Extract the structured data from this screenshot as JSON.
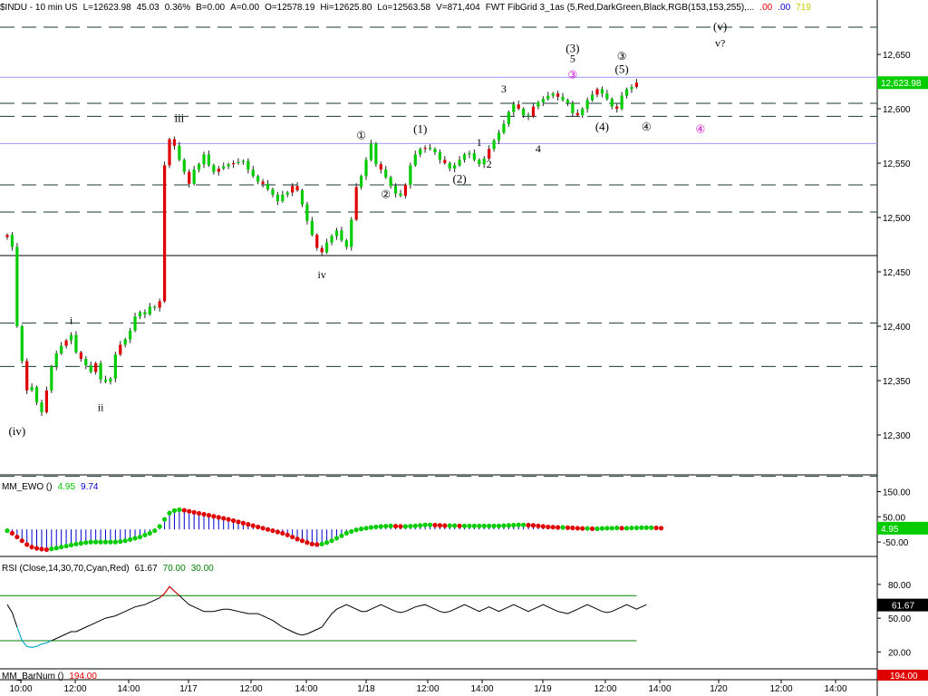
{
  "header": {
    "symbol": "$INDU - 10 min  US",
    "last": "L=12623.98",
    "change": "45.03",
    "change_pct": "0.36%",
    "bid": "B=0.00",
    "ask": "A=0.00",
    "open": "O=12578.19",
    "high": "Hi=12625.80",
    "low": "Lo=12563.58",
    "volume": "V=871,404",
    "study": "FWT FibGrid 3_1as (5,Red,DarkGreen,Black,RGB(153,153,255),...",
    "val_red": ".00",
    "val_blue": ".00",
    "val_yellow": "719"
  },
  "panels": {
    "ewo": {
      "name": "MM_EWO ()",
      "v1": "4.95",
      "v2": "9.74",
      "badge": "4.95",
      "badge_color": "#00cc00"
    },
    "rsi": {
      "name": "RSI (Close,14,30,70,Cyan,Red)",
      "v1": "61.67",
      "v2": "70.00",
      "v3": "30.00",
      "badge": "61.67"
    },
    "barnum": {
      "name": "MM_BarNum ()",
      "v1": "194.00",
      "badge": "194.00",
      "badge_color": "#e00000"
    }
  },
  "colors": {
    "up": "#00cc00",
    "down": "#e00000",
    "fib": "#9999ff",
    "ewo_bar": "#0000cc",
    "cyan": "#00c0e0"
  },
  "chart_data": {
    "type": "candlestick",
    "interval": "10 min",
    "price_axis": {
      "ylim": [
        12265,
        12685
      ],
      "ticks": [
        12300,
        12350,
        12400,
        12450,
        12500,
        12550,
        12600,
        12650
      ]
    },
    "last_price": 12623.98,
    "last_price_label": "12,623.98",
    "time_labels": [
      "10:00",
      "12:00",
      "14:00",
      "1/17",
      "12:00",
      "14:00",
      "1/18",
      "12:00",
      "14:00",
      "1/19",
      "12:00",
      "14:00",
      "1/20",
      "12:00",
      "14:00"
    ],
    "fib_lines_solid": [
      12629,
      12568
    ],
    "fib_lines_dashed": [
      12675,
      12605,
      12593,
      12530,
      12505,
      12403,
      12363,
      12262
    ],
    "horizontal_line": 12465,
    "closes": [
      12484,
      12473,
      12400,
      12368,
      12341,
      12344,
      12330,
      12321,
      12341,
      12363,
      12375,
      12382,
      12387,
      12392,
      12376,
      12370,
      12364,
      12358,
      12366,
      12351,
      12349,
      12352,
      12374,
      12383,
      12388,
      12396,
      12409,
      12413,
      12411,
      12418,
      12417,
      12423,
      12548,
      12572,
      12566,
      12553,
      12542,
      12531,
      12544,
      12549,
      12558,
      12548,
      12542,
      12545,
      12547,
      12549,
      12550,
      12551,
      12552,
      12544,
      12538,
      12533,
      12531,
      12526,
      12521,
      12515,
      12521,
      12523,
      12529,
      12525,
      12512,
      12497,
      12484,
      12472,
      12468,
      12477,
      12483,
      12488,
      12479,
      12473,
      12498,
      12528,
      12538,
      12553,
      12568,
      12549,
      12544,
      12537,
      12529,
      12522,
      12520,
      12530,
      12548,
      12558,
      12563,
      12564,
      12563,
      12560,
      12553,
      12550,
      12545,
      12548,
      12553,
      12558,
      12559,
      12553,
      12549,
      12554,
      12563,
      12571,
      12578,
      12586,
      12597,
      12604,
      12600,
      12594,
      12593,
      12602,
      12606,
      12609,
      12612,
      12614,
      12611,
      12608,
      12605,
      12596,
      12594,
      12600,
      12608,
      12613,
      12618,
      12614,
      12609,
      12602,
      12600,
      12612,
      12618,
      12620,
      12624
    ],
    "event_bars": [
      0,
      4,
      8,
      12,
      15,
      18,
      23,
      31,
      32,
      33,
      34,
      37,
      43,
      46,
      52,
      58,
      59,
      63,
      64,
      71,
      76,
      81,
      85,
      89,
      98,
      104,
      107,
      112,
      116,
      120,
      124,
      128
    ],
    "ewo": {
      "ylim": [
        -100,
        195
      ],
      "ticks": [
        150,
        50,
        -50
      ],
      "values": [
        -5,
        -15,
        -30,
        -45,
        -60,
        -70,
        -75,
        -78,
        -80,
        -77,
        -74,
        -70,
        -66,
        -62,
        -58,
        -55,
        -52,
        -50,
        -50,
        -50,
        -50,
        -50,
        -50,
        -48,
        -45,
        -40,
        -35,
        -30,
        -22,
        -15,
        -5,
        12,
        40,
        65,
        75,
        78,
        76,
        72,
        68,
        64,
        60,
        56,
        52,
        48,
        44,
        40,
        35,
        30,
        25,
        20,
        15,
        10,
        5,
        0,
        -5,
        -10,
        -15,
        -22,
        -30,
        -38,
        -45,
        -52,
        -58,
        -60,
        -58,
        -52,
        -45,
        -35,
        -25,
        -15,
        -8,
        -2,
        2,
        5,
        8,
        10,
        12,
        13,
        14,
        13,
        12,
        12,
        13,
        14,
        16,
        18,
        18,
        17,
        16,
        15,
        15,
        15,
        14,
        14,
        14,
        14,
        14,
        14,
        14,
        14,
        14,
        15,
        16,
        17,
        18,
        18,
        17,
        16,
        14,
        12,
        10,
        9,
        8,
        8,
        7,
        6,
        5,
        4,
        4,
        3,
        3,
        4,
        5,
        5,
        6,
        5,
        5,
        6,
        6,
        7,
        7,
        7,
        6,
        5
      ]
    },
    "rsi": {
      "ylim": [
        5,
        100
      ],
      "ticks": [
        80,
        50,
        20
      ],
      "bands": [
        70,
        30
      ],
      "values": [
        62,
        55,
        42,
        30,
        25,
        24,
        25,
        27,
        28,
        30,
        32,
        34,
        36,
        38,
        38,
        40,
        42,
        44,
        46,
        48,
        50,
        51,
        52,
        54,
        56,
        58,
        60,
        61,
        62,
        64,
        66,
        68,
        72,
        78,
        74,
        70,
        66,
        62,
        60,
        58,
        56,
        56,
        56,
        57,
        58,
        58,
        57,
        56,
        55,
        54,
        54,
        54,
        52,
        50,
        48,
        45,
        42,
        40,
        38,
        36,
        35,
        36,
        38,
        40,
        42,
        48,
        54,
        58,
        60,
        62,
        60,
        58,
        56,
        56,
        58,
        60,
        62,
        60,
        58,
        56,
        55,
        56,
        58,
        60,
        61,
        62,
        60,
        58,
        56,
        55,
        56,
        58,
        60,
        62,
        60,
        58,
        56,
        58,
        60,
        58,
        56,
        58,
        60,
        62,
        60,
        58,
        56,
        58,
        60,
        62,
        60,
        58,
        56,
        55,
        54,
        56,
        58,
        60,
        62,
        60,
        58,
        56,
        55,
        56,
        58,
        60,
        62,
        60,
        58,
        60,
        62
      ]
    },
    "wave_labels": [
      {
        "text": "(iv)",
        "bar": 2,
        "price": 12300,
        "color": "#000000"
      },
      {
        "text": "i",
        "bar": 13,
        "price": 12402,
        "color": "#000000"
      },
      {
        "text": "ii",
        "bar": 19,
        "price": 12322,
        "color": "#000000"
      },
      {
        "text": "iii",
        "bar": 35,
        "price": 12588,
        "color": "#000000"
      },
      {
        "text": "iv",
        "bar": 64,
        "price": 12444,
        "color": "#000000"
      },
      {
        "text": "①",
        "bar": 72,
        "price": 12572,
        "color": "#000000"
      },
      {
        "text": "②",
        "bar": 77,
        "price": 12518,
        "color": "#000000"
      },
      {
        "text": "(1)",
        "bar": 84,
        "price": 12578,
        "color": "#000000"
      },
      {
        "text": "(2)",
        "bar": 92,
        "price": 12532,
        "color": "#000000"
      },
      {
        "text": "1",
        "bar": 96,
        "price": 12566,
        "color": "#000000"
      },
      {
        "text": "2",
        "bar": 98,
        "price": 12546,
        "color": "#000000"
      },
      {
        "text": "3",
        "bar": 101,
        "price": 12615,
        "color": "#000000"
      },
      {
        "text": "4",
        "bar": 108,
        "price": 12560,
        "color": "#000000"
      },
      {
        "text": "(3)",
        "bar": 115,
        "price": 12652,
        "color": "#000000"
      },
      {
        "text": "5",
        "bar": 115,
        "price": 12643,
        "color": "#000000"
      },
      {
        "text": "③",
        "bar": 115,
        "price": 12628,
        "color": "#cc00cc"
      },
      {
        "text": "(4)",
        "bar": 121,
        "price": 12580,
        "color": "#000000"
      },
      {
        "text": "③",
        "bar": 125,
        "price": 12645,
        "color": "#000000"
      },
      {
        "text": "(5)",
        "bar": 125,
        "price": 12633,
        "color": "#000000"
      },
      {
        "text": "④",
        "bar": 130,
        "price": 12580,
        "color": "#000000"
      },
      {
        "text": "④",
        "bar": 141,
        "price": 12578,
        "color": "#cc00cc"
      },
      {
        "text": "(v)",
        "bar": 145,
        "price": 12672,
        "color": "#000000"
      },
      {
        "text": "v?",
        "bar": 145,
        "price": 12657,
        "color": "#000000"
      }
    ]
  }
}
